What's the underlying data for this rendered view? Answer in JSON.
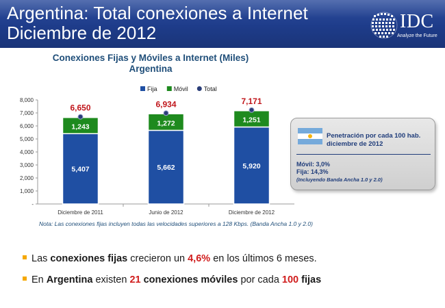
{
  "header": {
    "title_line1": "Argentina: Total conexiones a Internet",
    "title_line2": "Diciembre de 2012",
    "logo_text": "IDC",
    "logo_tagline": "Analyze the Future"
  },
  "chart_title_line1": "Conexiones Fijas y Móviles a Internet (Miles)",
  "chart_title_line2": "Argentina",
  "chart_data": {
    "type": "bar",
    "stacked": true,
    "categories": [
      "Diciembre de 2011",
      "Junio de 2012",
      "Diciembre de 2012"
    ],
    "series": [
      {
        "name": "Fija",
        "values": [
          5407,
          5662,
          5920
        ],
        "color": "#1f4fa3"
      },
      {
        "name": "Móvil",
        "values": [
          1243,
          1272,
          1251
        ],
        "color": "#1e8a1e"
      }
    ],
    "totals": {
      "name": "Total",
      "values": [
        6650,
        6934,
        7171
      ],
      "color": "#c0161b"
    },
    "value_labels": {
      "Fija": [
        "5,407",
        "5,662",
        "5,920"
      ],
      "Móvil": [
        "1,243",
        "1,272",
        "1,251"
      ],
      "Total": [
        "6,650",
        "6,934",
        "7,171"
      ]
    },
    "y_ticks": [
      "-",
      "1,000",
      "2,000",
      "3,000",
      "4,000",
      "5,000",
      "6,000",
      "7,000",
      "8,000"
    ],
    "ylim": [
      0,
      8000
    ],
    "legend_position": "top",
    "grid": false
  },
  "note": "Nota: Las conexiones fijas incluyen todas las velocidades superiores a 128 Kbps. (Banda Ancha 1.0 y 2.0)",
  "info_box": {
    "line1": "Penetración por cada 100 hab.",
    "line2": "diciembre de 2012",
    "movil": "Móvil:  3,0%",
    "fija": "Fija:  14,3%",
    "incl": "(Incluyendo Banda Ancha 1.0 y 2.0)"
  },
  "bullets": [
    {
      "p1": "Las ",
      "b1": "conexiones fijas",
      "p2": " crecieron un ",
      "r1": "4,6%",
      "p3": " en los últimos 6 meses."
    },
    {
      "p1": "En ",
      "b1": "Argentina",
      "p2": " existen ",
      "r1": "21",
      "p3": " ",
      "b2": "conexiones móviles",
      "p4": " por cada ",
      "r2": "100",
      "p5": " ",
      "b3": "fijas"
    }
  ],
  "colors": {
    "header_bg": "#1e3c8a",
    "accent_red": "#d01c1c",
    "bullet_marker": "#f5a800",
    "title_blue": "#1f4e79"
  }
}
